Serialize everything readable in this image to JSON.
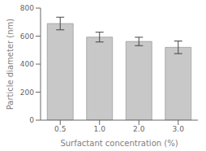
{
  "chart_data": {
    "type": "bar",
    "categories": [
      "0.5",
      "1.0",
      "2.0",
      "3.0"
    ],
    "values": [
      690,
      593,
      562,
      520
    ],
    "errors": [
      45,
      35,
      30,
      45
    ],
    "color": "#c8c8c8",
    "xlabel": "Surfactant concentration (%)",
    "ylabel": "Particle diameter (nm)",
    "ylim": [
      0,
      800
    ],
    "yticks": [
      0,
      200,
      400,
      600,
      800
    ],
    "grid": false
  }
}
